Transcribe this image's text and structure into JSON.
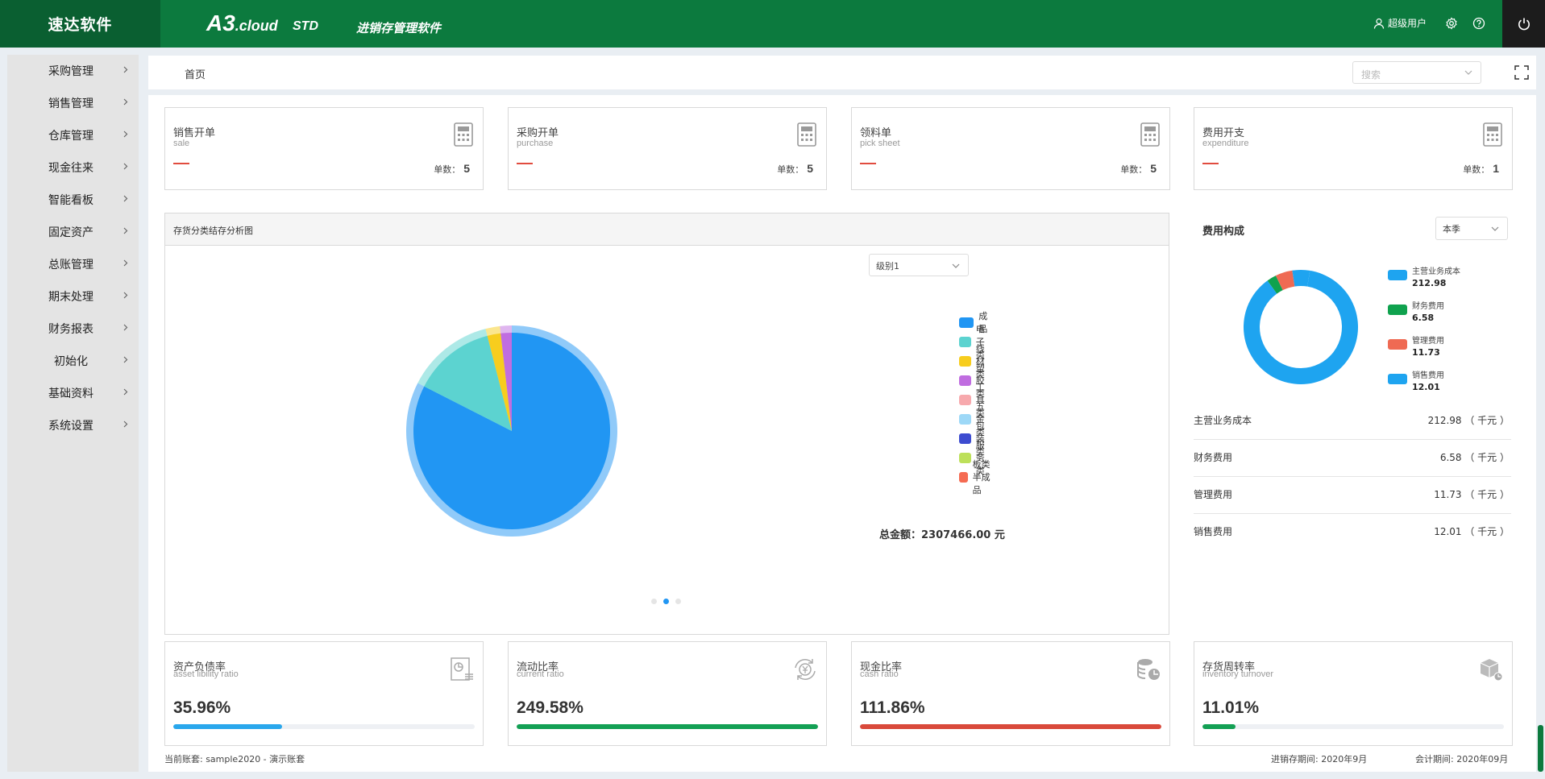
{
  "header": {
    "brand": "速达软件",
    "product_main": "A3",
    "product_suffix": ".cloud",
    "edition": "STD",
    "subtitle": "进销存管理软件",
    "user": "超级用户"
  },
  "sidebar": {
    "items": [
      {
        "label": "采购管理"
      },
      {
        "label": "销售管理"
      },
      {
        "label": "仓库管理"
      },
      {
        "label": "现金往来"
      },
      {
        "label": "智能看板"
      },
      {
        "label": "固定资产"
      },
      {
        "label": "总账管理"
      },
      {
        "label": "期末处理"
      },
      {
        "label": "财务报表"
      },
      {
        "label": "初始化"
      },
      {
        "label": "基础资料"
      },
      {
        "label": "系统设置"
      }
    ]
  },
  "breadcrumb": {
    "home": "首页"
  },
  "search": {
    "placeholder": "搜索"
  },
  "cards": [
    {
      "title": "销售开单",
      "subtitle": "sale",
      "count_label": "单数：",
      "count": "5"
    },
    {
      "title": "采购开单",
      "subtitle": "purchase",
      "count_label": "单数：",
      "count": "5"
    },
    {
      "title": "领料单",
      "subtitle": "pick sheet",
      "count_label": "单数：",
      "count": "5"
    },
    {
      "title": "费用开支",
      "subtitle": "expenditure",
      "count_label": "单数：",
      "count": "1"
    }
  ],
  "inventory_panel": {
    "title": "存货分类结存分析图",
    "level_select": "级别1",
    "total_label": "总金额：2307466.00 元"
  },
  "cost_panel": {
    "title": "费用构成",
    "period_select": "本季",
    "rows": [
      {
        "name": "主营业务成本",
        "value": "212.98 （ 千元 ）"
      },
      {
        "name": "财务费用",
        "value": "6.58 （ 千元 ）"
      },
      {
        "name": "管理费用",
        "value": "11.73 （ 千元 ）"
      },
      {
        "name": "销售费用",
        "value": "12.01 （ 千元 ）"
      }
    ]
  },
  "kpis": [
    {
      "title": "资产负债率",
      "subtitle": "asset libility ratio",
      "value": "35.96%",
      "progress": 0.36,
      "color": "#2aa7ec"
    },
    {
      "title": "流动比率",
      "subtitle": "current ratio",
      "value": "249.58%",
      "progress": 1.0,
      "color": "#13a054"
    },
    {
      "title": "现金比率",
      "subtitle": "cash ratio",
      "value": "111.86%",
      "progress": 1.0,
      "color": "#d9493b"
    },
    {
      "title": "存货周转率",
      "subtitle": "inventory turnover",
      "value": "11.01%",
      "progress": 0.11,
      "color": "#13a054"
    }
  ],
  "footer": {
    "account": "当前账套: sample2020 - 演示账套",
    "inventory_period": "进销存期间: 2020年9月",
    "accounting_period": "会计期间: 2020年09月"
  },
  "chart_data": [
    {
      "type": "pie",
      "title": "存货分类结存分析图",
      "categories": [
        "成品",
        "电子类",
        "线材类",
        "塑胶类",
        "工具类",
        "五金类",
        "包装类",
        "服务类",
        "板类半成品"
      ],
      "values": [
        82.5,
        13.5,
        2.2,
        1.8,
        0,
        0,
        0,
        0,
        0
      ],
      "colors": [
        "#2196f3",
        "#5cd3d0",
        "#f7cd1e",
        "#c06de0",
        "#f7a9ad",
        "#9dd8f7",
        "#3d4cd0",
        "#bde05a",
        "#f56b52"
      ],
      "legend": "right"
    },
    {
      "type": "pie",
      "title": "费用构成",
      "categories": [
        "主营业务成本",
        "财务费用",
        "管理费用",
        "销售费用"
      ],
      "values": [
        212.98,
        6.58,
        11.73,
        12.01
      ],
      "value_labels": [
        "212.98",
        "6.58",
        "11.73",
        "12.01"
      ],
      "colors": [
        "#1ea4f0",
        "#0fa24e",
        "#ef6a53",
        "#1ea4f0"
      ],
      "legend": "right"
    }
  ]
}
